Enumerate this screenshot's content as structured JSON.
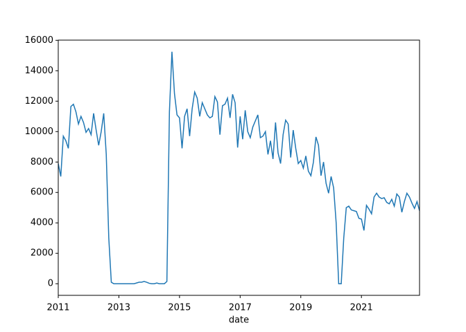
{
  "chart_data": {
    "type": "line",
    "x_label": "date",
    "color": "#1f77b4",
    "x": [
      "2011-01",
      "2011-02",
      "2011-03",
      "2011-04",
      "2011-05",
      "2011-06",
      "2011-07",
      "2011-08",
      "2011-09",
      "2011-10",
      "2011-11",
      "2011-12",
      "2012-01",
      "2012-02",
      "2012-03",
      "2012-04",
      "2012-05",
      "2012-06",
      "2012-07",
      "2012-08",
      "2012-09",
      "2012-10",
      "2012-11",
      "2012-12",
      "2013-01",
      "2013-02",
      "2013-03",
      "2013-04",
      "2013-05",
      "2013-06",
      "2013-07",
      "2013-08",
      "2013-09",
      "2013-10",
      "2013-11",
      "2013-12",
      "2014-01",
      "2014-02",
      "2014-03",
      "2014-04",
      "2014-05",
      "2014-06",
      "2014-07",
      "2014-08",
      "2014-09",
      "2014-10",
      "2014-11",
      "2014-12",
      "2015-01",
      "2015-02",
      "2015-03",
      "2015-04",
      "2015-05",
      "2015-06",
      "2015-07",
      "2015-08",
      "2015-09",
      "2015-10",
      "2015-11",
      "2015-12",
      "2016-01",
      "2016-02",
      "2016-03",
      "2016-04",
      "2016-05",
      "2016-06",
      "2016-07",
      "2016-08",
      "2016-09",
      "2016-10",
      "2016-11",
      "2016-12",
      "2017-01",
      "2017-02",
      "2017-03",
      "2017-04",
      "2017-05",
      "2017-06",
      "2017-07",
      "2017-08",
      "2017-09",
      "2017-10",
      "2017-11",
      "2017-12",
      "2018-01",
      "2018-02",
      "2018-03",
      "2018-04",
      "2018-05",
      "2018-06",
      "2018-07",
      "2018-08",
      "2018-09",
      "2018-10",
      "2018-11",
      "2018-12",
      "2019-01",
      "2019-02",
      "2019-03",
      "2019-04",
      "2019-05",
      "2019-06",
      "2019-07",
      "2019-08",
      "2019-09",
      "2019-10",
      "2019-11",
      "2019-12",
      "2020-01",
      "2020-02",
      "2020-03",
      "2020-04",
      "2020-05",
      "2020-06",
      "2020-07",
      "2020-08",
      "2020-09",
      "2020-10",
      "2020-11",
      "2020-12",
      "2021-01",
      "2021-02",
      "2021-03",
      "2021-04",
      "2021-05",
      "2021-06",
      "2021-07",
      "2021-08",
      "2021-09",
      "2021-10",
      "2021-11",
      "2021-12",
      "2022-01",
      "2022-02",
      "2022-03",
      "2022-04",
      "2022-05",
      "2022-06",
      "2022-07",
      "2022-08",
      "2022-09",
      "2022-10",
      "2022-11",
      "2022-12"
    ],
    "values": [
      7900,
      7050,
      9700,
      9400,
      8900,
      11650,
      11800,
      11300,
      10500,
      11000,
      10600,
      9950,
      10200,
      9800,
      11200,
      10100,
      9100,
      10000,
      11200,
      8500,
      3000,
      100,
      0,
      0,
      0,
      0,
      0,
      0,
      0,
      0,
      0,
      50,
      100,
      100,
      150,
      100,
      30,
      0,
      0,
      50,
      0,
      0,
      0,
      150,
      11300,
      15250,
      12500,
      11100,
      10900,
      8900,
      11000,
      11500,
      9700,
      11500,
      12600,
      12200,
      11000,
      11900,
      11500,
      11100,
      10900,
      11000,
      12300,
      11950,
      9800,
      11700,
      11800,
      12200,
      10900,
      12450,
      11900,
      8950,
      11000,
      9500,
      11400,
      10000,
      9600,
      10300,
      10700,
      11100,
      9600,
      9700,
      10000,
      8500,
      9400,
      8200,
      10600,
      8600,
      7900,
      9800,
      10750,
      10500,
      8300,
      10100,
      8900,
      7900,
      8100,
      7600,
      8400,
      7400,
      7100,
      8000,
      9650,
      9100,
      7100,
      8000,
      6600,
      5950,
      7050,
      6300,
      4000,
      0,
      0,
      3000,
      5000,
      5100,
      4850,
      4800,
      4750,
      4300,
      4250,
      3500,
      5150,
      4900,
      4600,
      5700,
      5950,
      5700,
      5600,
      5650,
      5350,
      5250,
      5550,
      5100,
      5900,
      5700,
      4700,
      5400,
      5950,
      5700,
      5300,
      4950,
      5400,
      4800
    ],
    "xlim": [
      "2011-01",
      "2022-12"
    ],
    "xticks": [
      {
        "value": "2011-01",
        "label": "2011"
      },
      {
        "value": "2013-01",
        "label": "2013"
      },
      {
        "value": "2015-01",
        "label": "2015"
      },
      {
        "value": "2017-01",
        "label": "2017"
      },
      {
        "value": "2019-01",
        "label": "2019"
      },
      {
        "value": "2021-01",
        "label": "2021"
      }
    ],
    "ylim": [
      -763,
      16013
    ],
    "yticks": [
      0,
      2000,
      4000,
      6000,
      8000,
      10000,
      12000,
      14000,
      16000
    ]
  }
}
